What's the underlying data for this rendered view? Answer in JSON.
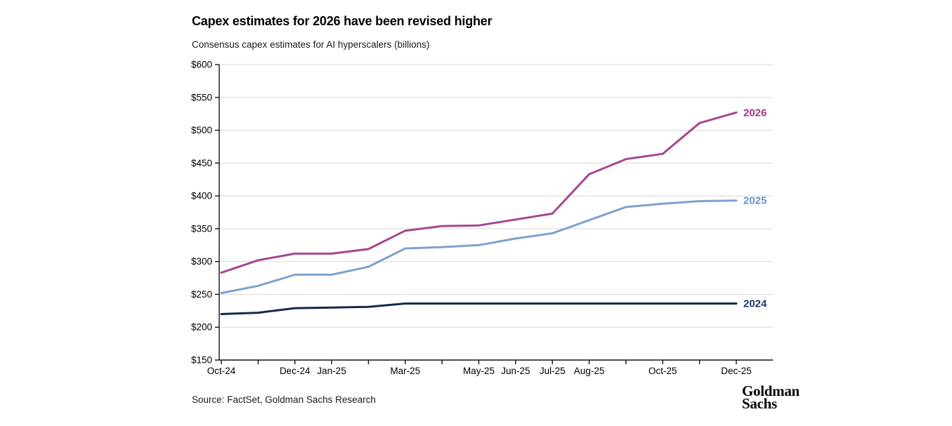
{
  "chart_data": {
    "type": "line",
    "title": "Capex estimates for 2026 have been revised higher",
    "subtitle": "Consensus capex estimates for AI hyperscalers (billions)",
    "xlabel": "",
    "ylabel": "",
    "x": [
      "Oct-24",
      "Nov-24",
      "Dec-24",
      "Jan-25",
      "Feb-25",
      "Mar-25",
      "Apr-25",
      "May-25",
      "Jun-25",
      "Jul-25",
      "Aug-25",
      "Sep-25",
      "Oct-25",
      "Nov-25",
      "Dec-25"
    ],
    "labeled_x_indices": [
      0,
      2,
      3,
      5,
      7,
      8,
      9,
      10,
      12,
      14
    ],
    "y_ticks": [
      {
        "value": 150,
        "label": "$150"
      },
      {
        "value": 200,
        "label": "$200"
      },
      {
        "value": 250,
        "label": "$250"
      },
      {
        "value": 300,
        "label": "$300"
      },
      {
        "value": 350,
        "label": "$350"
      },
      {
        "value": 400,
        "label": "$400"
      },
      {
        "value": 450,
        "label": "$450"
      },
      {
        "value": 500,
        "label": "$500"
      },
      {
        "value": 550,
        "label": "$550"
      },
      {
        "value": 600,
        "label": "$600"
      }
    ],
    "ylim": [
      150,
      600
    ],
    "grid": true,
    "legend_position": "end-of-line",
    "series": [
      {
        "name": "2026",
        "color": "#A5478F",
        "label_color": "#A13283",
        "values": [
          283,
          302,
          312,
          312,
          319,
          347,
          354,
          355,
          364,
          373,
          433,
          456,
          464,
          511,
          527
        ]
      },
      {
        "name": "2025",
        "color": "#7EA1D2",
        "label_color": "#6792CA",
        "values": [
          252,
          263,
          280,
          280,
          292,
          320,
          322,
          325,
          335,
          343,
          363,
          383,
          388,
          392,
          393
        ]
      },
      {
        "name": "2024",
        "color": "#14294E",
        "label_color": "#1F3865",
        "values": [
          220,
          222,
          229,
          230,
          231,
          236,
          236,
          236,
          236,
          236,
          236,
          236,
          236,
          236,
          236
        ]
      }
    ],
    "colors": {
      "gridline": "#D8D8D8",
      "axis": "#111111"
    }
  },
  "footer": {
    "source": "Source: FactSet, Goldman Sachs Research",
    "logo_line1": "Goldman",
    "logo_line2": "Sachs"
  }
}
